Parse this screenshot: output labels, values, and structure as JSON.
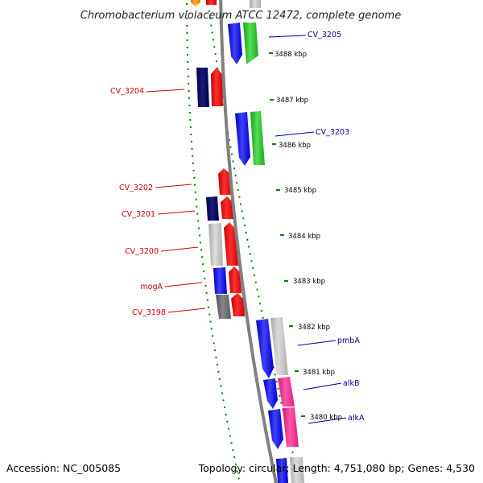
{
  "title": "Chromobacterium violaceum ATCC 12472, complete genome",
  "footer": {
    "accession": "Accession: NC_005085",
    "summary": "Topology: circular; Length: 4,751,080 bp; Genes: 4,530"
  },
  "colors": {
    "label_left": "#cc0000",
    "label_right": "#000099",
    "backbone": "#808080",
    "dotted_track": "#008000",
    "cds_forward": "#ff0000",
    "cds_reverse": "#0000ff",
    "trna": "#33cc33",
    "gray": "#c0c0c0",
    "dark_gray": "#707070",
    "navy": "#000066",
    "pink": "#ff3399",
    "orange": "#ff9900"
  },
  "ticks": [
    {
      "label": "3488 kbp"
    },
    {
      "label": "3487 kbp"
    },
    {
      "label": "3486 kbp"
    },
    {
      "label": "3485 kbp"
    },
    {
      "label": "3484 kbp"
    },
    {
      "label": "3483 kbp"
    },
    {
      "label": "3482 kbp"
    },
    {
      "label": "3481 kbp"
    },
    {
      "label": "3480 kbp"
    }
  ],
  "gene_labels": {
    "right": [
      {
        "name": "CV_3205"
      },
      {
        "name": "CV_3203"
      },
      {
        "name": "pmbA"
      },
      {
        "name": "alkB"
      },
      {
        "name": "alkA"
      }
    ],
    "left": [
      {
        "name": "CV_3204"
      },
      {
        "name": "CV_3202"
      },
      {
        "name": "CV_3201"
      },
      {
        "name": "CV_3200"
      },
      {
        "name": "mogA"
      },
      {
        "name": "CV_3198"
      }
    ]
  }
}
